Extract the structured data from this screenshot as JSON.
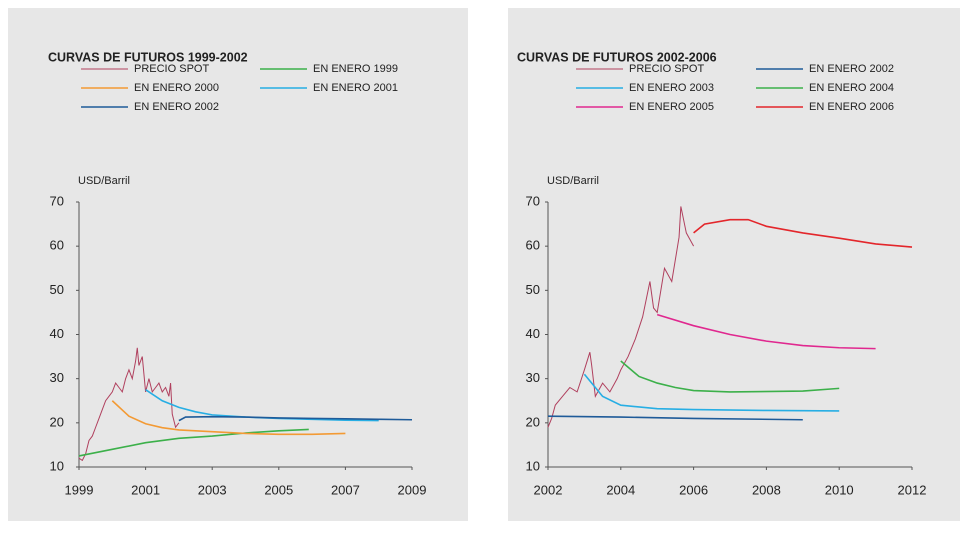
{
  "chart_data": [
    {
      "type": "line",
      "title": "CURVAS DE FUTUROS 1999-2002",
      "y_label": "USD/Barril",
      "xlim": [
        1999,
        2009
      ],
      "xticks": [
        1999,
        2001,
        2003,
        2005,
        2007,
        2009
      ],
      "ylim": [
        10,
        70
      ],
      "yticks": [
        10,
        20,
        30,
        40,
        50,
        60,
        70
      ],
      "series": [
        {
          "name": "PRECIO SPOT",
          "color": "#b0405e",
          "x": [
            1999.0,
            1999.1,
            1999.2,
            1999.3,
            1999.4,
            1999.5,
            1999.6,
            1999.7,
            1999.8,
            1999.9,
            2000.0,
            2000.1,
            2000.2,
            2000.3,
            2000.4,
            2000.5,
            2000.6,
            2000.7,
            2000.75,
            2000.8,
            2000.9,
            2001.0,
            2001.1,
            2001.2,
            2001.3,
            2001.4,
            2001.5,
            2001.6,
            2001.7,
            2001.75,
            2001.8,
            2001.9,
            2002.0
          ],
          "values": [
            12,
            11.5,
            13,
            16,
            17,
            19,
            21,
            23,
            25,
            26,
            27,
            29,
            28,
            27,
            30,
            32,
            30,
            34,
            37,
            33,
            35,
            27,
            30,
            27,
            28,
            29,
            27,
            28,
            26,
            29,
            22,
            19,
            20
          ]
        },
        {
          "name": "EN ENERO 1999",
          "color": "#3cb04a",
          "x": [
            1999,
            2000,
            2001,
            2002,
            2003,
            2004,
            2005,
            2005.9
          ],
          "values": [
            12.5,
            14,
            15.5,
            16.5,
            17,
            17.7,
            18.2,
            18.5
          ]
        },
        {
          "name": "EN ENERO 2000",
          "color": "#f39a34",
          "x": [
            2000,
            2000.5,
            2001,
            2001.5,
            2002,
            2003,
            2004,
            2005,
            2006,
            2007
          ],
          "values": [
            25,
            21.5,
            19.8,
            18.9,
            18.4,
            18,
            17.6,
            17.4,
            17.4,
            17.6
          ]
        },
        {
          "name": "EN ENERO 2001",
          "color": "#27aee4",
          "x": [
            2001,
            2001.5,
            2002,
            2002.5,
            2003,
            2004,
            2005,
            2006,
            2007,
            2008
          ],
          "values": [
            27.5,
            25,
            23.5,
            22.5,
            21.8,
            21.3,
            21,
            20.8,
            20.6,
            20.5
          ]
        },
        {
          "name": "EN ENERO 2002",
          "color": "#1f5b99",
          "x": [
            2002,
            2002.2,
            2003,
            2004,
            2005,
            2006,
            2007,
            2008,
            2009
          ],
          "values": [
            20.5,
            21.3,
            21.4,
            21.3,
            21.1,
            21,
            20.9,
            20.8,
            20.7
          ]
        }
      ]
    },
    {
      "type": "line",
      "title": "CURVAS DE FUTUROS 2002-2006",
      "y_label": "USD/Barril",
      "xlim": [
        2002,
        2012
      ],
      "xticks": [
        2002,
        2004,
        2006,
        2008,
        2010,
        2012
      ],
      "ylim": [
        10,
        70
      ],
      "yticks": [
        10,
        20,
        30,
        40,
        50,
        60,
        70
      ],
      "series": [
        {
          "name": "PRECIO SPOT",
          "color": "#b0405e",
          "x": [
            2002.0,
            2002.1,
            2002.2,
            2002.4,
            2002.6,
            2002.8,
            2003.0,
            2003.15,
            2003.2,
            2003.3,
            2003.5,
            2003.7,
            2003.9,
            2004.0,
            2004.2,
            2004.4,
            2004.6,
            2004.8,
            2004.9,
            2005.0,
            2005.2,
            2005.4,
            2005.6,
            2005.65,
            2005.8,
            2006.0
          ],
          "values": [
            19,
            21,
            24,
            26,
            28,
            27,
            32,
            36,
            33,
            26,
            29,
            27,
            30,
            32,
            35,
            39,
            44,
            52,
            46,
            45,
            55,
            52,
            62,
            69,
            63,
            60
          ]
        },
        {
          "name": "EN ENERO 2002",
          "color": "#1f5b99",
          "x": [
            2002,
            2004,
            2006,
            2009
          ],
          "values": [
            21.5,
            21.3,
            21,
            20.7
          ]
        },
        {
          "name": "EN ENERO 2003",
          "color": "#27aee4",
          "x": [
            2003,
            2003.5,
            2004,
            2005,
            2006,
            2008,
            2010
          ],
          "values": [
            31,
            26,
            24,
            23.2,
            23,
            22.8,
            22.7
          ]
        },
        {
          "name": "EN ENERO 2004",
          "color": "#3cb04a",
          "x": [
            2004,
            2004.5,
            2005,
            2005.5,
            2006,
            2007,
            2009,
            2010
          ],
          "values": [
            34,
            30.5,
            29,
            28,
            27.3,
            27,
            27.2,
            27.8
          ]
        },
        {
          "name": "EN ENERO 2005",
          "color": "#e0288f",
          "x": [
            2005,
            2006,
            2007,
            2008,
            2009,
            2010,
            2011
          ],
          "values": [
            44.5,
            42,
            40,
            38.5,
            37.5,
            37,
            36.8
          ]
        },
        {
          "name": "EN ENERO 2006",
          "color": "#e3262b",
          "x": [
            2006,
            2006.3,
            2007,
            2007.5,
            2008,
            2009,
            2010,
            2011,
            2012
          ],
          "values": [
            63,
            65,
            66,
            66,
            64.5,
            63,
            61.8,
            60.5,
            59.8
          ]
        }
      ]
    }
  ]
}
